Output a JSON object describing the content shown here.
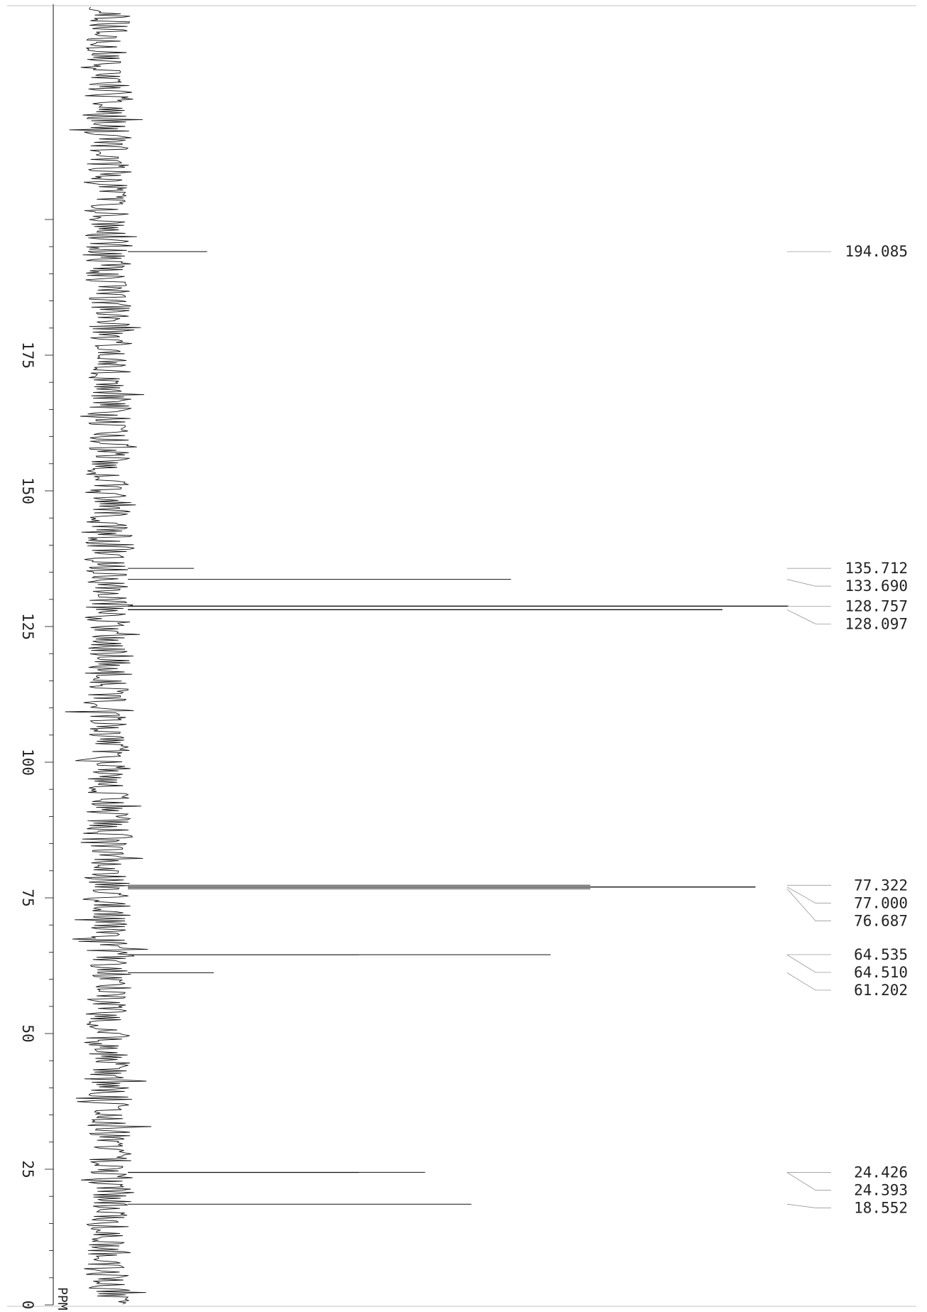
{
  "chart_data": {
    "type": "line",
    "title": "",
    "xlabel": "PPM",
    "ylabel": "",
    "ppm_range": [
      0,
      200
    ],
    "axis_ticks": [
      0,
      25,
      50,
      75,
      100,
      125,
      150,
      175
    ],
    "axis_tick_labels": [
      "0",
      "25",
      "50",
      "75",
      "100",
      "125",
      "150",
      "175"
    ],
    "peaks": [
      {
        "ppm": 194.085,
        "label": "194.085",
        "intensity": 0.12
      },
      {
        "ppm": 135.712,
        "label": "135.712",
        "intensity": 0.1
      },
      {
        "ppm": 133.69,
        "label": "133.690",
        "intensity": 0.58
      },
      {
        "ppm": 128.757,
        "label": "128.757",
        "intensity": 1.0
      },
      {
        "ppm": 128.097,
        "label": "128.097",
        "intensity": 0.9
      },
      {
        "ppm": 77.322,
        "label": "77.322",
        "intensity": 0.7
      },
      {
        "ppm": 77.0,
        "label": "77.000",
        "intensity": 0.95
      },
      {
        "ppm": 76.687,
        "label": "76.687",
        "intensity": 0.7
      },
      {
        "ppm": 64.535,
        "label": "64.535",
        "intensity": 0.64
      },
      {
        "ppm": 64.51,
        "label": "64.510",
        "intensity": 0.35
      },
      {
        "ppm": 61.202,
        "label": "61.202",
        "intensity": 0.13
      },
      {
        "ppm": 24.426,
        "label": "24.426",
        "intensity": 0.45
      },
      {
        "ppm": 24.393,
        "label": "24.393",
        "intensity": 0.35
      },
      {
        "ppm": 18.552,
        "label": "18.552",
        "intensity": 0.52
      }
    ],
    "grid": false,
    "orientation": "rotated-90"
  },
  "colors": {
    "ink": "#111111",
    "faint": "#888888"
  }
}
